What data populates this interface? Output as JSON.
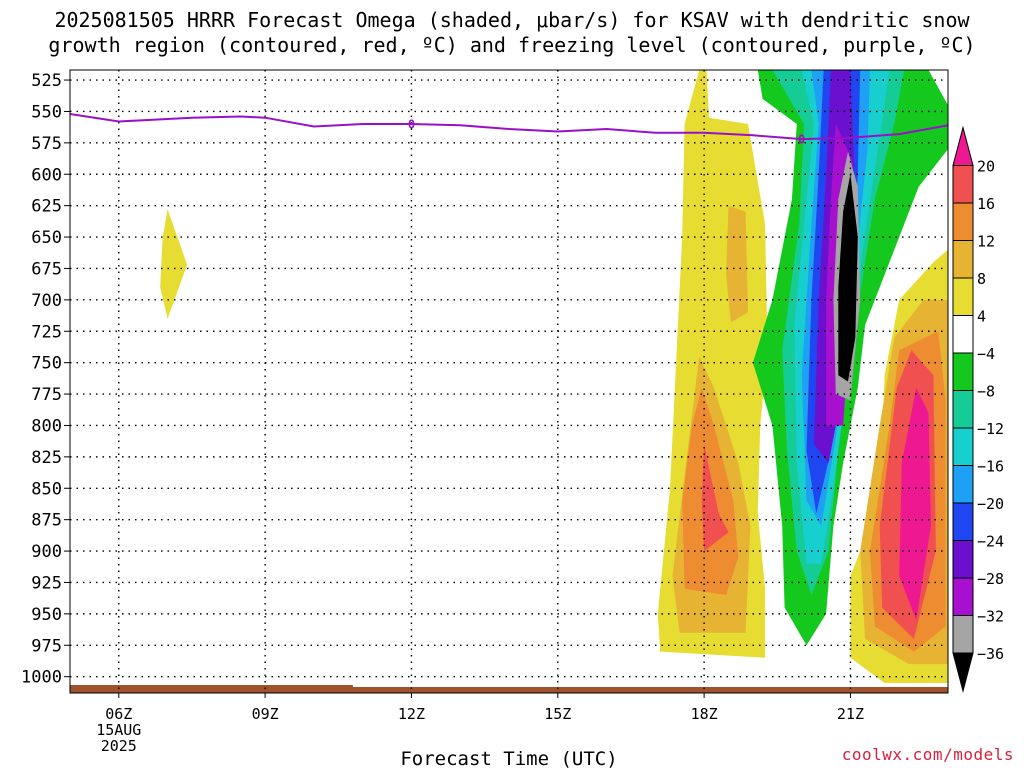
{
  "title_line1": "2025081505 HRRR Forecast Omega (shaded, μbar/s) for KSAV with dendritic snow",
  "title_line2": "growth region (contoured, red, ºC) and freezing level (contoured, purple, ºC)",
  "watermark": "coolwx.com/models",
  "chart_data": {
    "type": "heatmap",
    "title": "2025081505 HRRR Forecast Omega (shaded, μbar/s) for KSAV with dendritic snow growth region (contoured, red, ºC) and freezing level (contoured, purple, ºC)",
    "xlabel": "Forecast Time (UTC)",
    "ylabel": "",
    "x_ticks": [
      "06Z",
      "09Z",
      "12Z",
      "15Z",
      "18Z",
      "21Z"
    ],
    "x_tick_hours_utc": [
      6,
      9,
      12,
      15,
      18,
      21
    ],
    "x_date_label": [
      "15AUG",
      "2025"
    ],
    "xlim_hours_utc": [
      5,
      23
    ],
    "y_ticks_mb": [
      525,
      550,
      575,
      600,
      625,
      650,
      675,
      700,
      725,
      750,
      775,
      800,
      825,
      850,
      875,
      900,
      925,
      950,
      975,
      1000
    ],
    "ylim_mb": [
      1013,
      517
    ],
    "grid": true,
    "colorbar": {
      "units": "μbar/s",
      "levels": [
        -36,
        -32,
        -28,
        -24,
        -20,
        -16,
        -12,
        -8,
        -4,
        4,
        8,
        12,
        16,
        20
      ],
      "tick_labels": [
        "20",
        "16",
        "12",
        "8",
        "4",
        "−4",
        "−8",
        "−12",
        "−16",
        "−20",
        "−24",
        "−28",
        "−32",
        "−36"
      ],
      "colors_bottom_to_top": [
        "#000000",
        "#a5a5a5",
        "#a810cf",
        "#6b10cf",
        "#1f46f0",
        "#1ea0f5",
        "#18cfcf",
        "#16cc96",
        "#14c81e",
        "#ffffff",
        "#e6dc32",
        "#e6b432",
        "#ee8c32",
        "#f05050",
        "#ee1890"
      ]
    },
    "freezing_level": {
      "label": "0",
      "color": "#9a10c8",
      "points": [
        [
          5.0,
          552
        ],
        [
          5.5,
          555
        ],
        [
          6.0,
          558
        ],
        [
          6.5,
          557
        ],
        [
          7.5,
          555
        ],
        [
          8.5,
          554
        ],
        [
          9.0,
          555
        ],
        [
          10.0,
          562
        ],
        [
          11.0,
          560
        ],
        [
          12.0,
          560
        ],
        [
          13.0,
          561
        ],
        [
          14.0,
          564
        ],
        [
          15.0,
          566
        ],
        [
          16.0,
          564
        ],
        [
          17.0,
          567
        ],
        [
          18.0,
          567
        ],
        [
          19.0,
          569
        ],
        [
          20.0,
          572
        ],
        [
          21.0,
          571
        ],
        [
          22.0,
          568
        ],
        [
          23.0,
          561
        ]
      ]
    },
    "omega_regions": [
      {
        "value_range": [
          4,
          8
        ],
        "description": "small upward-motion patch near 07Z",
        "hours": [
          6.9,
          7.4
        ],
        "mb": [
          630,
          715
        ]
      },
      {
        "value_range": [
          4,
          8
        ],
        "description": "ascent band 17Z-19Z",
        "hours": [
          17.0,
          19.1
        ],
        "mb": [
          517,
          980
        ]
      },
      {
        "value_range": [
          8,
          16
        ],
        "description": "core 17.5Z-18.8Z",
        "hours": [
          17.3,
          18.8
        ],
        "mb": [
          740,
          960
        ]
      },
      {
        "value_range": [
          16,
          20
        ],
        "description": "max near 18Z 850-900mb",
        "hours": [
          17.9,
          18.3
        ],
        "mb": [
          820,
          900
        ]
      },
      {
        "value_range": [
          -36,
          -8
        ],
        "description": "subsidence column 19Z-22Z",
        "hours": [
          19.2,
          22.0
        ],
        "mb": [
          517,
          975
        ]
      },
      {
        "value_range": [
          -40,
          -36
        ],
        "description": "strongest descent near 21Z",
        "hours": [
          20.7,
          21.3
        ],
        "mb": [
          600,
          790
        ]
      },
      {
        "value_range": [
          4,
          20
        ],
        "description": "ascent 21.5Z-23Z low levels",
        "hours": [
          21.0,
          23.0
        ],
        "mb": [
          680,
          1005
        ]
      }
    ],
    "surface_bar_color": "#a0522d"
  }
}
